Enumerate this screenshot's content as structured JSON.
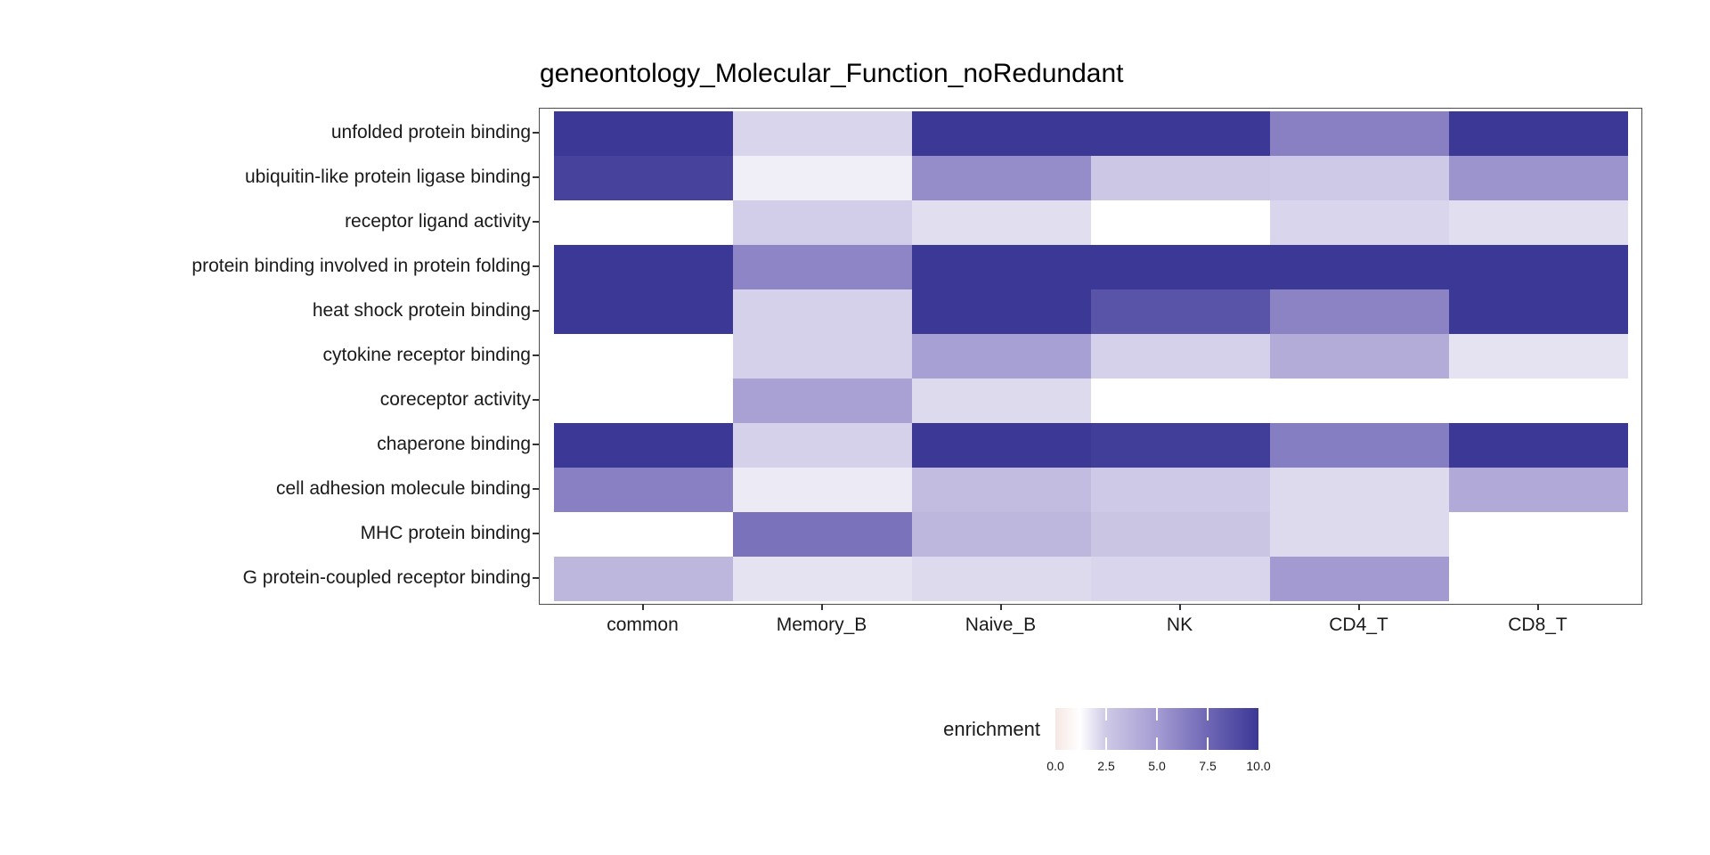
{
  "chart_data": {
    "type": "heatmap",
    "title": "geneontology_Molecular_Function_noRedundant",
    "columns": [
      "common",
      "Memory_B",
      "Naive_B",
      "NK",
      "CD4_T",
      "CD8_T"
    ],
    "rows": [
      "unfolded protein binding",
      "ubiquitin-like protein ligase binding",
      "receptor ligand activity",
      "protein binding involved in protein folding",
      "heat shock protein binding",
      "cytokine receptor binding",
      "coreceptor activity",
      "chaperone binding",
      "cell adhesion molecule binding",
      "MHC protein binding",
      "G protein-coupled receptor binding"
    ],
    "values": [
      [
        10,
        2.2,
        10,
        10,
        6.3,
        10
      ],
      [
        9.4,
        1.6,
        5.7,
        2.6,
        2.5,
        5.4
      ],
      [
        null,
        2.4,
        2.0,
        null,
        2.2,
        2.0
      ],
      [
        10,
        6.1,
        10,
        10,
        10,
        10
      ],
      [
        10,
        2.3,
        10,
        8.5,
        6.2,
        10
      ],
      [
        null,
        2.3,
        4.8,
        2.3,
        4.1,
        1.9
      ],
      [
        null,
        4.7,
        2.1,
        null,
        null,
        null
      ],
      [
        10,
        2.3,
        10,
        9.7,
        6.4,
        10
      ],
      [
        6.3,
        1.7,
        3.2,
        2.5,
        2.1,
        4.2
      ],
      [
        null,
        7.0,
        3.5,
        2.7,
        2.1,
        null
      ],
      [
        3.5,
        1.9,
        2.1,
        2.2,
        5.1,
        null
      ]
    ],
    "missing_color": "#ffffff",
    "legend": {
      "label": "enrichment",
      "min": 0,
      "max": 10,
      "tick_values": [
        0,
        2.5,
        5,
        7.5,
        10
      ],
      "tick_labels": [
        "0.0",
        "2.5",
        "5.0",
        "7.5",
        "10.0"
      ],
      "gradient_anchors": [
        {
          "v": 0.0,
          "c": "#F6E7E3"
        },
        {
          "v": 1.2,
          "c": "#FFFFFF"
        },
        {
          "v": 2.5,
          "c": "#CEC9E6"
        },
        {
          "v": 5.0,
          "c": "#A49CD2"
        },
        {
          "v": 7.5,
          "c": "#6F67B5"
        },
        {
          "v": 10.0,
          "c": "#3B3896"
        }
      ]
    },
    "layout": {
      "grid": "off",
      "legend_position": "bottom-center",
      "axis_border_color": "#4c4c4c",
      "tick_color": "#333333"
    }
  }
}
